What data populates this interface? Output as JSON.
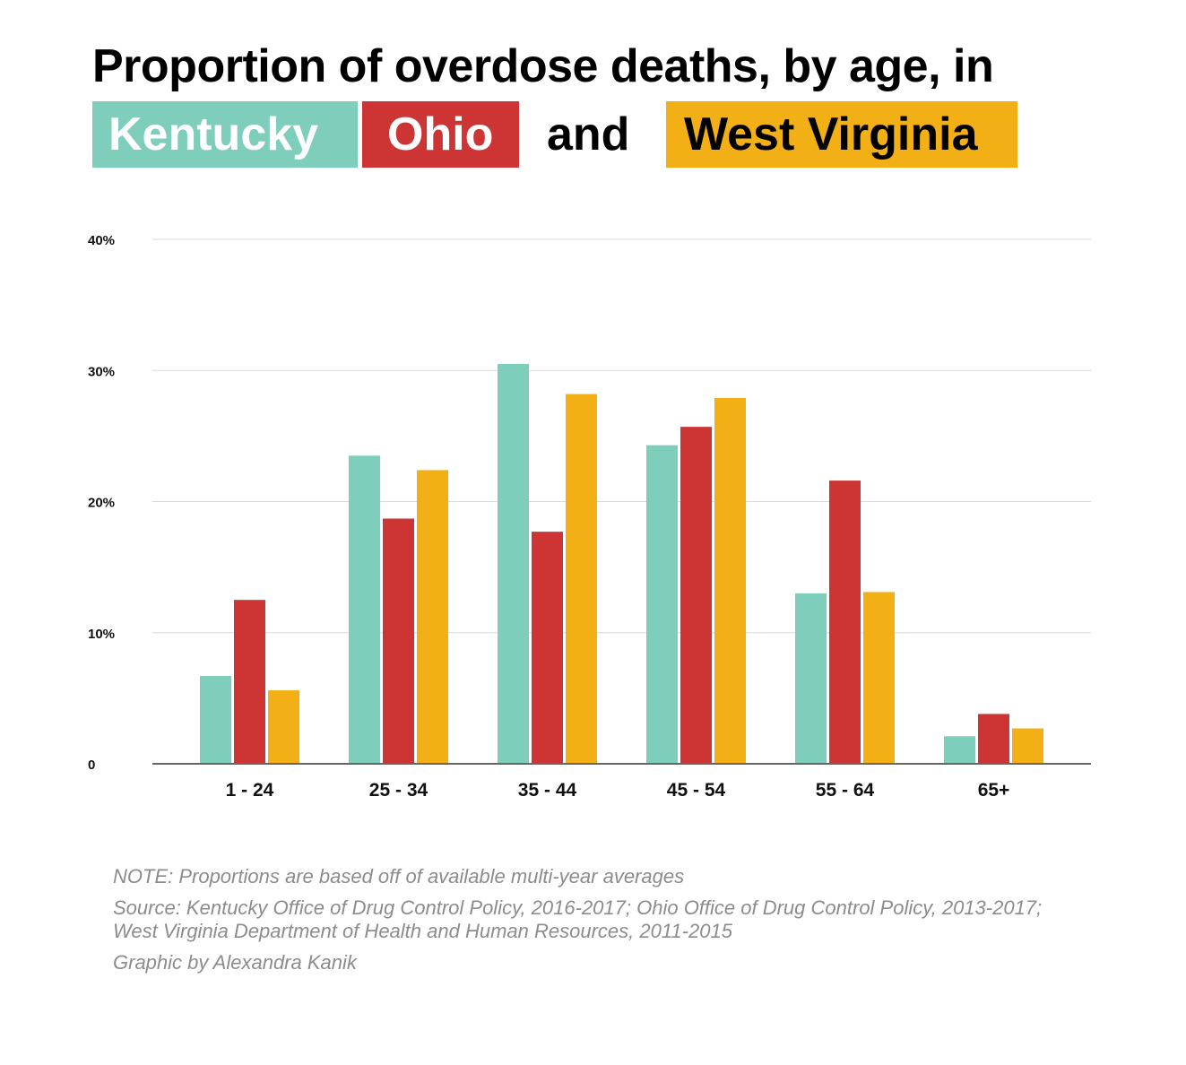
{
  "title": {
    "line1": "Proportion of overdose deaths, by age, in",
    "connector": "and"
  },
  "colors": {
    "Kentucky": "#7fcdbb",
    "Ohio": "#cd3434",
    "West Virginia": "#f2b016",
    "grid": "#d9d9d9",
    "axis": "#666666"
  },
  "chart_data": {
    "type": "bar",
    "title": "Proportion of overdose deaths, by age, in Kentucky Ohio and West Virginia",
    "categories": [
      "1 - 24",
      "25 - 34",
      "35 - 44",
      "45 - 54",
      "55 - 64",
      "65+"
    ],
    "series": [
      {
        "name": "Kentucky",
        "values": [
          6.7,
          23.5,
          30.5,
          24.3,
          13.0,
          2.1
        ]
      },
      {
        "name": "Ohio",
        "values": [
          12.5,
          18.7,
          17.7,
          25.7,
          21.6,
          3.8
        ]
      },
      {
        "name": "West Virginia",
        "values": [
          5.6,
          22.4,
          28.2,
          27.9,
          13.1,
          2.7
        ]
      }
    ],
    "ylim": [
      0,
      40
    ],
    "yticks": [
      0,
      10,
      20,
      30,
      40
    ],
    "ytick_labels": [
      "0",
      "10%",
      "20%",
      "30%",
      "40%"
    ],
    "xlabel": "",
    "ylabel": "",
    "grid": true,
    "legend": [
      "Kentucky",
      "Ohio",
      "West Virginia"
    ]
  },
  "notes": {
    "note": "NOTE: Proportions are based off of available multi-year averages",
    "source": "Source: Kentucky Office of Drug Control Policy, 2016-2017; Ohio Office of Drug Control Policy, 2013-2017;\nWest Virginia Department of Health and Human Resources, 2011-2015",
    "credit": "Graphic by Alexandra Kanik"
  }
}
